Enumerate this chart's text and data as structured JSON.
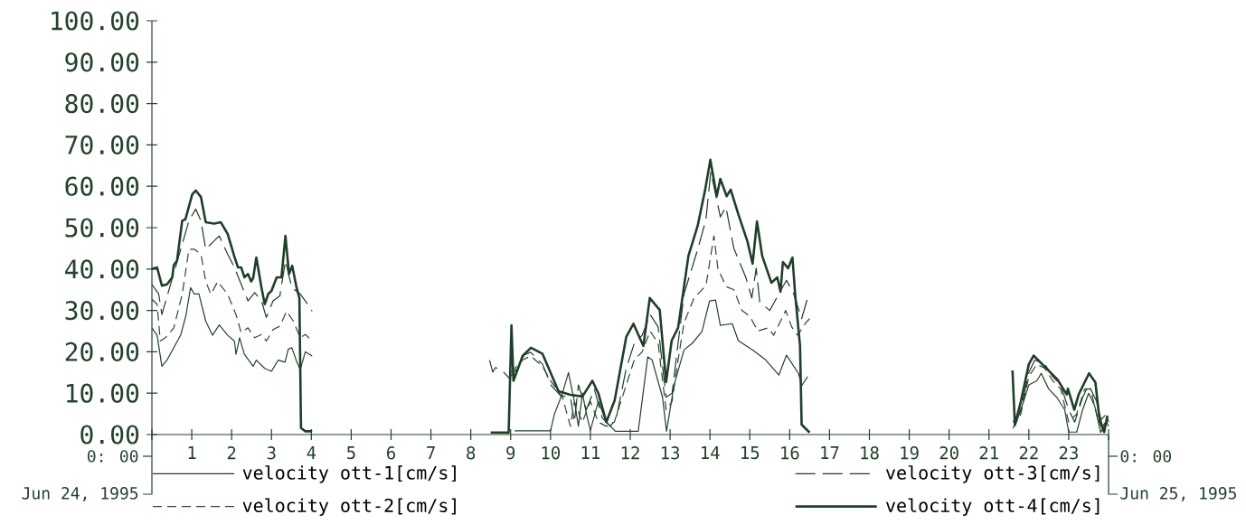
{
  "chart_data": {
    "type": "line",
    "xlim": [
      0,
      24
    ],
    "xticks": [
      {
        "value": 0,
        "label": null
      },
      1,
      2,
      3,
      4,
      5,
      6,
      7,
      8,
      9,
      10,
      11,
      12,
      13,
      14,
      15,
      16,
      17,
      18,
      19,
      20,
      21,
      22,
      23,
      {
        "value": 24,
        "label": null
      }
    ],
    "ylim": [
      0,
      100
    ],
    "yticks": [
      {
        "value": 0,
        "label": "0.00"
      },
      {
        "value": 10,
        "label": "10.00"
      },
      {
        "value": 20,
        "label": "20.00"
      },
      {
        "value": 30,
        "label": "30.00"
      },
      {
        "value": 40,
        "label": "40.00"
      },
      {
        "value": 50,
        "label": "50.00"
      },
      {
        "value": 60,
        "label": "60.00"
      },
      {
        "value": 70,
        "label": "70.00"
      },
      {
        "value": 80,
        "label": "80.00"
      },
      {
        "value": 90,
        "label": "90.00"
      },
      {
        "value": 100,
        "label": "100.00"
      }
    ],
    "legend": "bottom",
    "annotations": [
      "0: 00",
      "Jun 24, 1995",
      "0: 00",
      "Jun 25, 1995"
    ],
    "series": [
      {
        "name": "velocity ott-1[cm/s]",
        "color": "#24422c",
        "line_style": "solid",
        "x": [
          0,
          0.13,
          0.25,
          0.38,
          0.55,
          0.72,
          0.85,
          0.97,
          1.06,
          1.18,
          1.35,
          1.52,
          1.69,
          1.9,
          2.07,
          2.11,
          2.2,
          2.32,
          2.54,
          2.62,
          2.83,
          3.0,
          3.17,
          3.34,
          3.42,
          3.51,
          3.63,
          3.72,
          3.85,
          4.02,
          6,
          9.1,
          10.0,
          10.1,
          10.3,
          10.45,
          10.6,
          10.7,
          10.8,
          10.9,
          11.0,
          11.2,
          11.4,
          11.63,
          12.2,
          12.25,
          12.44,
          12.55,
          12.81,
          12.91,
          13.1,
          13.35,
          13.55,
          13.8,
          13.99,
          14.14,
          14.26,
          14.56,
          14.71,
          15.09,
          15.39,
          15.73,
          15.92,
          16.22,
          16.3,
          16.45,
          19,
          21.6,
          21.8,
          22.0,
          22.2,
          22.31,
          22.5,
          22.7,
          22.9,
          23.0,
          23.2,
          23.35,
          23.5,
          23.65,
          23.8,
          23.95,
          24.0
        ],
        "values": [
          25.8,
          24,
          16.5,
          18,
          21,
          24,
          28.6,
          35.5,
          34,
          34,
          27.4,
          24,
          26.5,
          24,
          22.6,
          19.4,
          23.4,
          19.4,
          16.5,
          18,
          16,
          15.3,
          18,
          17.5,
          20.6,
          21,
          17.7,
          15.7,
          20,
          19,
          null,
          0.9,
          0.9,
          5,
          10,
          15,
          8,
          2,
          10,
          5,
          1,
          8,
          3,
          0.8,
          0.8,
          4.5,
          18.8,
          18,
          9,
          0.8,
          12,
          20.5,
          22,
          24.9,
          32.3,
          32.5,
          26.4,
          26.8,
          22.7,
          20.3,
          18.1,
          14.4,
          19.2,
          14.8,
          11.8,
          14,
          null,
          3,
          6,
          12,
          13,
          14.8,
          11,
          9,
          6,
          0.6,
          0.6,
          6,
          10,
          7,
          0.5,
          3,
          2
        ]
      },
      {
        "name": "velocity ott-2[cm/s]",
        "color": "#2a4832",
        "line_style": "dashed",
        "x": [
          0,
          0.13,
          0.21,
          0.34,
          0.55,
          0.76,
          0.93,
          1.06,
          1.23,
          1.35,
          1.48,
          1.65,
          1.9,
          2.11,
          2.24,
          2.41,
          2.58,
          2.75,
          2.87,
          3.04,
          3.21,
          3.38,
          3.55,
          3.72,
          3.85,
          4.02,
          6,
          9.0,
          9.3,
          9.5,
          9.8,
          10.0,
          10.3,
          10.5,
          10.6,
          10.8,
          11.0,
          11.2,
          11.4,
          11.6,
          11.9,
          12.1,
          12.3,
          12.5,
          12.7,
          12.9,
          13.05,
          13.2,
          13.35,
          13.6,
          13.9,
          14.1,
          14.2,
          14.3,
          14.4,
          14.6,
          14.8,
          15.0,
          15.2,
          15.46,
          15.6,
          15.9,
          16.05,
          16.2,
          16.4,
          16.5,
          19,
          21.6,
          21.8,
          22.0,
          22.2,
          22.4,
          22.6,
          22.8,
          23.0,
          23.2,
          23.4,
          23.55,
          23.75,
          23.95,
          24.0
        ],
        "values": [
          32.7,
          31.5,
          22.6,
          23.4,
          25.8,
          33.9,
          44.8,
          44.8,
          43.6,
          37,
          33.9,
          37,
          33.9,
          29,
          24.6,
          25.8,
          23.4,
          24.2,
          22.6,
          25.4,
          26.2,
          29.8,
          27.4,
          23.4,
          24.2,
          22.6,
          null,
          15,
          18,
          19,
          16.5,
          13,
          9,
          2,
          8,
          3,
          8,
          3,
          2,
          3,
          12,
          18,
          20,
          25,
          22,
          6,
          8,
          18,
          27,
          33,
          36,
          48,
          40,
          38,
          35.8,
          35,
          30,
          28.6,
          25,
          25.8,
          24,
          30,
          26,
          24,
          27,
          28,
          null,
          1.5,
          5,
          14,
          17,
          16,
          13,
          11,
          3,
          5,
          11,
          11,
          3,
          5,
          3
        ]
      },
      {
        "name": "velocity ott-3[cm/s]",
        "color": "#1e3c27",
        "line_style": "dashed",
        "x": [
          0,
          0.17,
          0.25,
          0.42,
          0.59,
          0.76,
          0.93,
          1.1,
          1.23,
          1.35,
          1.56,
          1.69,
          1.9,
          2.07,
          2.24,
          2.41,
          2.58,
          2.75,
          2.87,
          3.04,
          3.21,
          3.35,
          3.51,
          3.72,
          3.85,
          4.02,
          6,
          8.47,
          8.55,
          8.62,
          8.78,
          8.96,
          9.12,
          9.34,
          9.5,
          9.8,
          10.02,
          10.25,
          10.5,
          10.6,
          10.7,
          10.9,
          11.1,
          11.3,
          11.5,
          11.65,
          11.9,
          12.1,
          12.3,
          12.5,
          12.7,
          12.9,
          13.05,
          13.2,
          13.35,
          13.7,
          13.9,
          14.02,
          14.1,
          14.26,
          14.4,
          14.6,
          14.9,
          15.05,
          15.16,
          15.25,
          15.5,
          15.58,
          15.92,
          16.1,
          16.3,
          16.45,
          16.55,
          19,
          21.65,
          21.8,
          22.0,
          22.15,
          22.4,
          22.6,
          22.8,
          23.0,
          23.15,
          23.35,
          23.5,
          23.7,
          23.85,
          24.0
        ],
        "values": [
          36.3,
          34,
          29,
          34.7,
          40.4,
          46,
          51.7,
          54.5,
          51.7,
          44.8,
          46.8,
          48,
          43.6,
          40.4,
          36.3,
          32.3,
          34.3,
          32.3,
          28.3,
          32.3,
          33.5,
          42,
          35.5,
          34,
          32.3,
          29.8,
          null,
          18,
          15.1,
          16.2,
          15.5,
          13.7,
          15.5,
          19.2,
          19.9,
          17,
          11.8,
          9.4,
          9,
          3,
          12,
          6,
          11,
          4,
          2,
          4,
          16,
          22,
          24,
          29,
          26,
          9,
          10,
          22,
          34,
          45,
          52,
          63.5,
          60,
          52.6,
          55,
          45,
          38,
          33,
          40.2,
          32,
          30,
          31.4,
          37.3,
          34,
          28,
          33,
          33,
          null,
          2,
          6,
          15,
          18,
          17,
          14,
          12,
          6,
          3,
          9,
          12,
          8,
          2,
          4
        ]
      },
      {
        "name": "velocity ott-4[cm/s]",
        "color": "#203e29",
        "line_style": "solid",
        "x": [
          0,
          0.13,
          0.25,
          0.38,
          0.51,
          0.55,
          0.63,
          0.76,
          0.84,
          1.01,
          1.1,
          1.23,
          1.35,
          1.56,
          1.73,
          1.9,
          2.07,
          2.16,
          2.24,
          2.32,
          2.41,
          2.49,
          2.54,
          2.62,
          2.75,
          2.83,
          2.92,
          3.0,
          3.13,
          3.25,
          3.35,
          3.44,
          3.52,
          3.63,
          3.7,
          3.74,
          3.85,
          4.02,
          6,
          8.5,
          8.95,
          9.02,
          9.07,
          9.3,
          9.51,
          9.8,
          10.0,
          10.2,
          10.5,
          10.8,
          11.05,
          11.2,
          11.4,
          11.61,
          11.9,
          12.08,
          12.33,
          12.49,
          12.74,
          12.82,
          12.9,
          13.04,
          13.2,
          13.35,
          13.46,
          13.69,
          13.88,
          14.01,
          14.1,
          14.17,
          14.26,
          14.42,
          14.52,
          14.71,
          14.94,
          15.07,
          15.18,
          15.31,
          15.54,
          15.69,
          15.77,
          15.83,
          15.96,
          16.07,
          16.14,
          16.26,
          16.3,
          16.5,
          19,
          21.59,
          21.65,
          21.8,
          22.0,
          22.12,
          22.42,
          22.72,
          22.95,
          22.98,
          23.14,
          23.25,
          23.51,
          23.67,
          23.78,
          23.89,
          23.97
        ],
        "values": [
          40,
          40.4,
          36,
          36.3,
          38,
          41,
          42,
          51.7,
          52,
          58,
          59,
          57.4,
          51.3,
          51,
          51.3,
          48.5,
          43,
          40.4,
          40.4,
          38,
          38.8,
          37,
          37.8,
          42.8,
          35.5,
          31.5,
          34,
          34.7,
          38,
          38,
          48,
          38.8,
          40.8,
          35.5,
          33,
          1.6,
          0.8,
          0.8,
          null,
          0.5,
          0.5,
          26.4,
          13,
          19,
          21,
          19.5,
          15,
          10.5,
          9.6,
          9.2,
          13,
          10,
          3,
          8.3,
          23.6,
          26.8,
          21.4,
          33,
          30.1,
          21.4,
          12.7,
          22.7,
          25.8,
          35.8,
          43.2,
          50.4,
          59.2,
          66.4,
          61.4,
          57.6,
          61.8,
          57.6,
          59.2,
          53.3,
          46.7,
          41.3,
          51.5,
          43.2,
          36.7,
          38,
          34.5,
          41.7,
          40.2,
          42.8,
          33.6,
          21.4,
          2.4,
          0.5,
          null,
          15.5,
          2.4,
          8,
          17,
          19.1,
          16.2,
          13.3,
          9.7,
          11.1,
          6,
          9.7,
          14.8,
          12.6,
          3.1,
          0.6,
          4.6
        ]
      }
    ]
  }
}
